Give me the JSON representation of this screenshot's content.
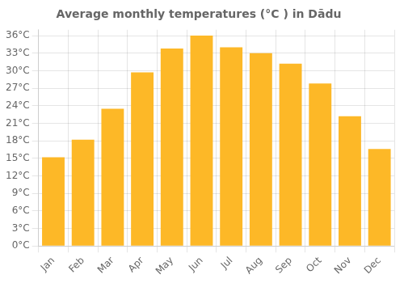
{
  "chart_data": {
    "type": "bar",
    "title": "Average monthly temperatures (°C ) in Dādu",
    "categories": [
      "Jan",
      "Feb",
      "Mar",
      "Apr",
      "May",
      "Jun",
      "Jul",
      "Aug",
      "Sep",
      "Oct",
      "Nov",
      "Dec"
    ],
    "values": [
      15.2,
      18.2,
      23.5,
      29.7,
      33.8,
      36.0,
      34.0,
      33.0,
      31.2,
      27.8,
      22.2,
      16.6
    ],
    "color": "#FDB827",
    "ylim": [
      0,
      37
    ],
    "yticks": [
      {
        "value": 0,
        "label": "0°C"
      },
      {
        "value": 3,
        "label": "3°C"
      },
      {
        "value": 6,
        "label": "6°C"
      },
      {
        "value": 9,
        "label": "9°C"
      },
      {
        "value": 12,
        "label": "12°C"
      },
      {
        "value": 15,
        "label": "15°C"
      },
      {
        "value": 18,
        "label": "18°C"
      },
      {
        "value": 21,
        "label": "21°C"
      },
      {
        "value": 24,
        "label": "24°C"
      },
      {
        "value": 27,
        "label": "27°C"
      },
      {
        "value": 30,
        "label": "30°C"
      },
      {
        "value": 33,
        "label": "33°C"
      },
      {
        "value": 36,
        "label": "36°C"
      }
    ],
    "grid": true
  }
}
